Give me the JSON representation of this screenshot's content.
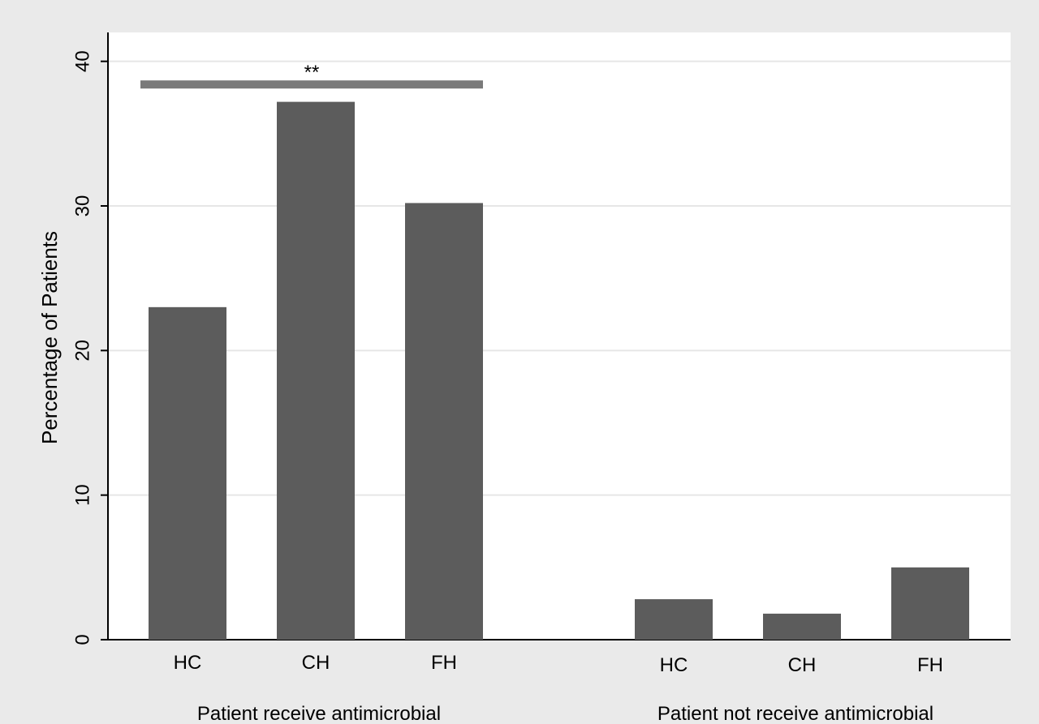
{
  "chart_data": {
    "type": "bar",
    "ylabel": "Percentage of Patients",
    "ylim": [
      0,
      42
    ],
    "yticks": [
      0,
      10,
      20,
      30,
      40
    ],
    "grid": true,
    "colors": {
      "bar": "#5c5c5c",
      "significance_bar": "#7a7a7a",
      "plot_background": "#ffffff",
      "outer_background": "#eaeaea",
      "gridline": "#e6e6e6",
      "axis": "#000000"
    },
    "groups": [
      {
        "label": "Patient receive antimicrobial",
        "categories": [
          "HC",
          "CH",
          "FH"
        ],
        "values": [
          23.0,
          37.2,
          30.2
        ]
      },
      {
        "label": "Patient not receive antimicrobial",
        "categories": [
          "HC",
          "CH",
          "FH"
        ],
        "values": [
          2.8,
          1.8,
          5.0
        ]
      }
    ],
    "annotations": [
      {
        "text": "**",
        "group": 0,
        "from_category": 0,
        "to_category": 2,
        "y": 38.4
      }
    ]
  }
}
